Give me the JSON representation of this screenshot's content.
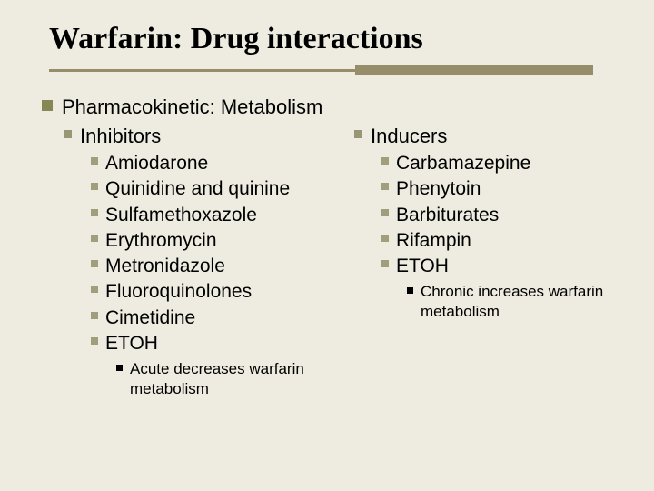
{
  "title": "Warfarin: Drug interactions",
  "heading": "Pharmacokinetic: Metabolism",
  "left": {
    "title": "Inhibitors",
    "items": [
      "Amiodarone",
      "Quinidine and quinine",
      "Sulfamethoxazole",
      "Erythromycin",
      "Metronidazole",
      "Fluoroquinolones",
      "Cimetidine",
      "ETOH"
    ],
    "note": "Acute decreases warfarin metabolism"
  },
  "right": {
    "title": "Inducers",
    "items": [
      "Carbamazepine",
      "Phenytoin",
      "Barbiturates",
      "Rifampin",
      "ETOH"
    ],
    "note": "Chronic increases warfarin metabolism"
  },
  "colors": {
    "background": "#eeece0",
    "accent": "#968d6a",
    "bullet1": "#898656",
    "bullet2": "#999773",
    "bullet3": "#a19e7c"
  }
}
